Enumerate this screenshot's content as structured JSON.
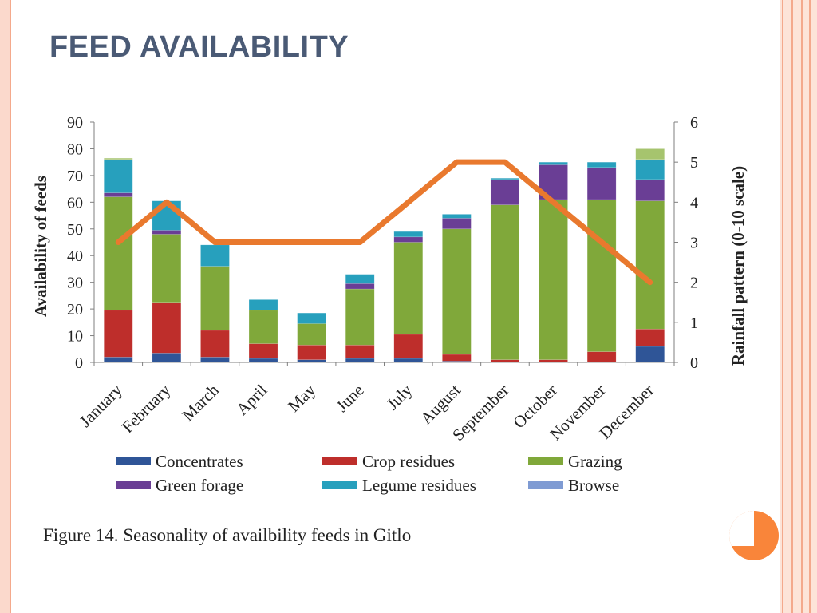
{
  "slide": {
    "title": "FEED AVAILABILITY",
    "caption": "Figure 14. Seasonality of availbility feeds in Gitlo"
  },
  "colors": {
    "frame": "#fbd9cc",
    "frame_line": "#f4a98c",
    "title": "#4a5a75",
    "accent": "#f9853a"
  },
  "chart_data": {
    "type": "bar",
    "stacked": true,
    "categories": [
      "January",
      "February",
      "March",
      "April",
      "May",
      "June",
      "July",
      "August",
      "September",
      "October",
      "November",
      "December"
    ],
    "ylabel": "Availability of feeds",
    "y2label": "Rainfall pattern (0-10 scale)",
    "ylim": [
      0,
      90
    ],
    "yticks": [
      0,
      10,
      20,
      30,
      40,
      50,
      60,
      70,
      80,
      90
    ],
    "y2lim": [
      0,
      6
    ],
    "y2ticks": [
      0,
      1,
      2,
      3,
      4,
      5,
      6
    ],
    "legend_position": "bottom",
    "series": [
      {
        "name": "Concentrates",
        "color": "#2f5597",
        "values": [
          2,
          3.5,
          2,
          1.5,
          1,
          1.5,
          1.5,
          0.5,
          0,
          0,
          0,
          6
        ]
      },
      {
        "name": "Crop residues",
        "color": "#be2e2b",
        "values": [
          17.5,
          19,
          10,
          5.5,
          5.5,
          5,
          9,
          2.5,
          1,
          1,
          4,
          6.5
        ]
      },
      {
        "name": "Grazing",
        "color": "#80a83a",
        "values": [
          42.5,
          25.5,
          24,
          12.5,
          8,
          21,
          34.5,
          47,
          58,
          60,
          57,
          48
        ]
      },
      {
        "name": "Green forage",
        "color": "#6a3e95",
        "values": [
          1.5,
          1.5,
          0,
          0,
          0,
          2,
          2,
          4,
          9.5,
          13,
          12,
          8
        ]
      },
      {
        "name": "Legume residues",
        "color": "#27a0bd",
        "values": [
          12.5,
          11,
          8,
          4,
          4,
          3.5,
          2,
          1.5,
          0.5,
          1,
          2,
          7.5
        ]
      },
      {
        "name": "Browse",
        "color": "#7f9bd3",
        "values": [
          0,
          0,
          0,
          0,
          0,
          0,
          0,
          0,
          0,
          0,
          0,
          0
        ]
      }
    ],
    "extra_top": {
      "color": "#a6c46e",
      "values": [
        0.5,
        0,
        0,
        0,
        0,
        0,
        0,
        0,
        0,
        0,
        0,
        4
      ]
    },
    "line": {
      "color": "#e9792e",
      "axis": "right",
      "values": [
        3,
        4,
        3,
        3,
        3,
        3,
        4,
        5,
        5,
        4,
        3,
        2
      ]
    }
  }
}
